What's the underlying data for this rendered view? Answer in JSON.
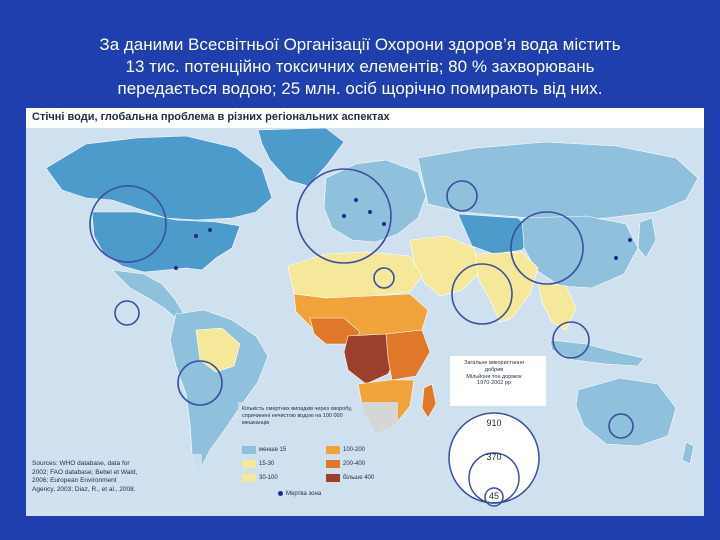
{
  "slide": {
    "caption_lines": [
      "За даними Всесвітньої Організації Охорони здоров’я вода містить",
      "13 тис. потенційно токсичних елементів; 80 % захворювань",
      "передається водою; 25 млн. осіб щорічно помирають від них."
    ]
  },
  "map": {
    "title": "Стічні води, глобальна проблема в різних регіональних аспектах",
    "colors": {
      "ocean": "#cfe1ef",
      "light_blue": "#8fc0dc",
      "mid_blue": "#4c9bcb",
      "pale_yellow": "#f6e89a",
      "orange": "#f0a23b",
      "dark_orange": "#e0782a",
      "brown": "#9c3f2d",
      "circle": "#3b4fa0"
    },
    "legend": {
      "title": "Кількість смертних випадків через хворобу, спричинені нечистою водою на 100 000 мешканців",
      "categories": [
        {
          "label": "менше 15",
          "color": "#8fc0dc"
        },
        {
          "label": "15-30",
          "color": "#f6e89a"
        },
        {
          "label": "30-100",
          "color": "#f6e89a"
        },
        {
          "label": "100-200",
          "color": "#f0a23b"
        },
        {
          "label": "200-400",
          "color": "#e0782a"
        },
        {
          "label": "більше 400",
          "color": "#9c3f2d"
        }
      ],
      "dead_zone_label": "Мертва зона"
    },
    "circle_legend": {
      "title_lines": [
        "Загальне використання",
        "добрив",
        "Мільйони тон доріжок",
        "1970-2002 рр"
      ],
      "values": [
        "910",
        "370",
        "45"
      ]
    },
    "sources": [
      "Sources: WHO database, data for",
      "2002; FAO database; Bebel et Wald,",
      "2006; European Environment",
      "Agency, 2003; Diaz, R., et al., 2008."
    ]
  }
}
